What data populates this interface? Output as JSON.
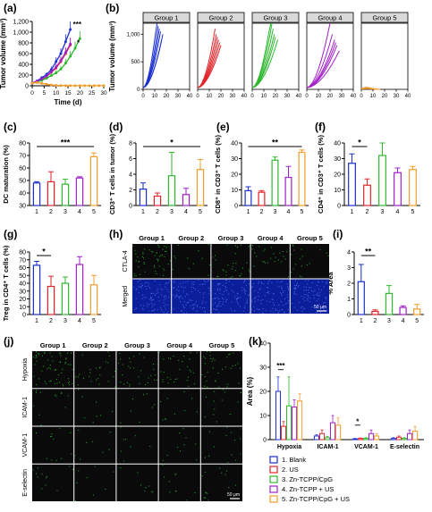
{
  "panel_letters": [
    "(a)",
    "(b)",
    "(c)",
    "(d)",
    "(e)",
    "(f)",
    "(g)",
    "(h)",
    "(i)",
    "(j)",
    "(k)"
  ],
  "colors": {
    "g1": "#1a2fd0",
    "g2": "#e0242a",
    "g3": "#2eb82e",
    "g4": "#a020c8",
    "g5": "#f39c29",
    "micro_bg": "#0a0a0a",
    "nuclei_bg": "#0b1f9a",
    "green_dots": "#2bd02b"
  },
  "chart_data": [
    {
      "id": "a",
      "type": "line",
      "xlabel": "Time (d)",
      "ylabel": "Tumor volume (mm³)",
      "xlim": [
        0,
        30
      ],
      "ylim": [
        0,
        1200
      ],
      "xticks": [
        "0",
        "5",
        "10",
        "15",
        "20",
        "25",
        "30"
      ],
      "yticks": [
        "0",
        "200",
        "400",
        "600",
        "800",
        "1,000",
        "1,200"
      ],
      "significance": [
        "***",
        "*"
      ],
      "series": [
        {
          "color": "#1a2fd0",
          "x": [
            0,
            2,
            4,
            6,
            8,
            10,
            12,
            14,
            16
          ],
          "y": [
            50,
            90,
            150,
            210,
            300,
            450,
            600,
            820,
            1050
          ],
          "err": [
            10,
            20,
            30,
            40,
            60,
            80,
            100,
            140,
            180
          ]
        },
        {
          "color": "#e0242a",
          "x": [
            0,
            2,
            4,
            6,
            8,
            10,
            12,
            14,
            16
          ],
          "y": [
            50,
            80,
            120,
            170,
            250,
            330,
            450,
            600,
            760
          ],
          "err": [
            10,
            15,
            25,
            35,
            45,
            60,
            80,
            100,
            120
          ]
        },
        {
          "color": "#2eb82e",
          "x": [
            0,
            2,
            4,
            6,
            8,
            10,
            12,
            14,
            16,
            18,
            20
          ],
          "y": [
            50,
            70,
            100,
            140,
            190,
            240,
            310,
            420,
            550,
            700,
            880
          ],
          "err": [
            10,
            15,
            20,
            30,
            40,
            50,
            60,
            80,
            100,
            120,
            140
          ]
        },
        {
          "color": "#a020c8",
          "x": [
            0,
            2,
            4,
            6,
            8,
            10,
            12,
            14,
            16
          ],
          "y": [
            50,
            80,
            130,
            180,
            260,
            350,
            470,
            620,
            780
          ],
          "err": [
            10,
            15,
            25,
            30,
            45,
            60,
            80,
            100,
            120
          ]
        },
        {
          "color": "#f39c29",
          "x": [
            0,
            2,
            4,
            6,
            8,
            10,
            12,
            14,
            16,
            18,
            20,
            22,
            24,
            26,
            28,
            30
          ],
          "y": [
            50,
            60,
            45,
            30,
            15,
            8,
            5,
            3,
            2,
            2,
            2,
            2,
            2,
            2,
            2,
            2
          ],
          "err": [
            5,
            8,
            8,
            6,
            4,
            3,
            2,
            1,
            1,
            1,
            1,
            1,
            1,
            1,
            1,
            1
          ]
        }
      ]
    },
    {
      "id": "b",
      "type": "line",
      "ylabel": "Tumor volume (mm³)",
      "panels": [
        "Group 1",
        "Group 2",
        "Group 3",
        "Group 4",
        "Group 5"
      ],
      "xticks": [
        "0",
        "10",
        "20",
        "30",
        "40"
      ],
      "yticks": [
        "0",
        "500",
        "1,000"
      ],
      "xlim": [
        0,
        40
      ],
      "ylim": [
        0,
        1200
      ],
      "groups": [
        {
          "color": "#1a2fd0",
          "end_x": [
            12,
            13,
            14,
            15,
            16,
            17
          ],
          "end_y": [
            1250,
            1150,
            1100,
            1050,
            900,
            1000
          ]
        },
        {
          "color": "#e0242a",
          "end_x": [
            15,
            16,
            17,
            18,
            19,
            20
          ],
          "end_y": [
            1100,
            1000,
            950,
            900,
            850,
            800
          ]
        },
        {
          "color": "#2eb82e",
          "end_x": [
            16,
            17,
            18,
            19,
            20,
            22
          ],
          "end_y": [
            1300,
            1200,
            1100,
            1000,
            950,
            900
          ]
        },
        {
          "color": "#a020c8",
          "end_x": [
            20,
            22,
            24,
            25,
            26,
            28
          ],
          "end_y": [
            1200,
            1000,
            900,
            850,
            800,
            700
          ]
        },
        {
          "color": "#f39c29",
          "end_x": [
            16,
            16,
            16,
            16,
            16,
            16
          ],
          "end_y": [
            40,
            30,
            25,
            20,
            15,
            10
          ]
        }
      ]
    },
    {
      "id": "c",
      "type": "bar",
      "ylabel": "DC maturation (%)",
      "categories": [
        "1",
        "2",
        "3",
        "4",
        "5"
      ],
      "values": [
        48,
        49,
        47,
        52,
        69
      ],
      "errors": [
        1,
        8,
        4,
        1,
        3
      ],
      "ylim": [
        30,
        80
      ],
      "yticks": [
        "30",
        "40",
        "50",
        "60",
        "70",
        "80"
      ],
      "sig": "***",
      "sig_from": 0,
      "sig_to": 4
    },
    {
      "id": "d",
      "type": "bar",
      "ylabel": "CD3⁺ T cells in tumor (%)",
      "categories": [
        "1",
        "2",
        "3",
        "4",
        "5"
      ],
      "values": [
        2.1,
        1.2,
        3.8,
        1.4,
        4.6
      ],
      "errors": [
        0.8,
        0.4,
        3.0,
        0.8,
        1.3
      ],
      "ylim": [
        0,
        8
      ],
      "yticks": [
        "0",
        "2",
        "4",
        "6",
        "8"
      ],
      "sig": "*",
      "sig_from": 0,
      "sig_to": 4
    },
    {
      "id": "e",
      "type": "bar",
      "ylabel": "CD8⁺ in CD3⁺ T cells (%)",
      "categories": [
        "1",
        "2",
        "3",
        "4",
        "5"
      ],
      "values": [
        9.5,
        8.5,
        29,
        18,
        34
      ],
      "errors": [
        2.5,
        1,
        2,
        7,
        1.5
      ],
      "ylim": [
        0,
        40
      ],
      "yticks": [
        "0",
        "10",
        "20",
        "30",
        "40"
      ],
      "sig": "**",
      "sig_from": 0,
      "sig_to": 4
    },
    {
      "id": "f",
      "type": "bar",
      "ylabel": "CD4⁺ in CD3⁺ T cells (%)",
      "categories": [
        "1",
        "2",
        "3",
        "4",
        "5"
      ],
      "values": [
        27,
        13,
        32,
        21,
        23
      ],
      "errors": [
        6,
        4,
        8,
        3,
        2
      ],
      "ylim": [
        0,
        40
      ],
      "yticks": [
        "0",
        "10",
        "20",
        "30",
        "40"
      ],
      "sig": "*",
      "sig_from": 0,
      "sig_to": 1
    },
    {
      "id": "g",
      "type": "bar",
      "ylabel": "Treg in CD4⁺ T cells (%)",
      "categories": [
        "1",
        "2",
        "3",
        "4",
        "5"
      ],
      "values": [
        63,
        36,
        40,
        64,
        38
      ],
      "errors": [
        5,
        13,
        8,
        10,
        12
      ],
      "ylim": [
        0,
        80
      ],
      "yticks": [
        "0",
        "10",
        "20",
        "30",
        "40",
        "50",
        "60",
        "70",
        "80"
      ],
      "sig": "*",
      "sig_from": 0,
      "sig_to": 1
    },
    {
      "id": "i",
      "type": "bar",
      "ylabel": "% Area",
      "categories": [
        "1",
        "2",
        "3",
        "4",
        "5"
      ],
      "values": [
        2.1,
        0.2,
        1.35,
        0.45,
        0.35
      ],
      "errors": [
        1.1,
        0.1,
        0.5,
        0.1,
        0.3
      ],
      "ylim": [
        0,
        4
      ],
      "yticks": [
        "0",
        "1",
        "2",
        "3",
        "4"
      ],
      "sig": "**",
      "sig_from": 0,
      "sig_to": 1
    },
    {
      "id": "k",
      "type": "bar",
      "ylabel": "Area (%)",
      "categories": [
        "Hypoxia",
        "ICAM-1",
        "VCAM-1",
        "E-selectin"
      ],
      "ylim": [
        0,
        40
      ],
      "yticks": [
        "0",
        "10",
        "20",
        "30",
        "40"
      ],
      "series": [
        {
          "name": "1. Blank",
          "color": "#1a2fd0",
          "values": [
            20,
            1.5,
            0.3,
            0.5
          ],
          "errors": [
            6,
            0.5,
            0.2,
            0.3
          ]
        },
        {
          "name": "2. US",
          "color": "#e0242a",
          "values": [
            5.5,
            2.5,
            0.5,
            1.0
          ],
          "errors": [
            2,
            1.5,
            0.2,
            0.5
          ]
        },
        {
          "name": "3. Zn-TCPP/CpG",
          "color": "#2eb82e",
          "values": [
            14,
            0.8,
            0.5,
            0.5
          ],
          "errors": [
            12,
            0.5,
            0.3,
            0.3
          ]
        },
        {
          "name": "4. Zn-TCPP + US",
          "color": "#a020c8",
          "values": [
            13.5,
            7,
            2.5,
            2.5
          ],
          "errors": [
            3,
            3,
            1.5,
            1.5
          ]
        },
        {
          "name": "5. Zn-TCPP/CpG + US",
          "color": "#f39c29",
          "values": [
            16,
            6,
            1.5,
            3.5
          ],
          "errors": [
            3,
            3,
            1,
            2
          ]
        }
      ],
      "sig": [
        {
          "label": "***",
          "cat": 0
        },
        {
          "label": "*",
          "cat": 2
        }
      ]
    }
  ],
  "micrographs": {
    "h": {
      "columns": [
        "Group 1",
        "Group 2",
        "Group 3",
        "Group 4",
        "Group 5"
      ],
      "rows": [
        "CTLA-4",
        "Merged"
      ],
      "scale": "50 μm"
    },
    "j": {
      "columns": [
        "Group 1",
        "Group 2",
        "Group 3",
        "Group 4",
        "Group 5"
      ],
      "rows": [
        "Hypoxia",
        "ICAM-1",
        "VCAM-1",
        "E-selectin"
      ],
      "scale": "50 μm"
    }
  }
}
